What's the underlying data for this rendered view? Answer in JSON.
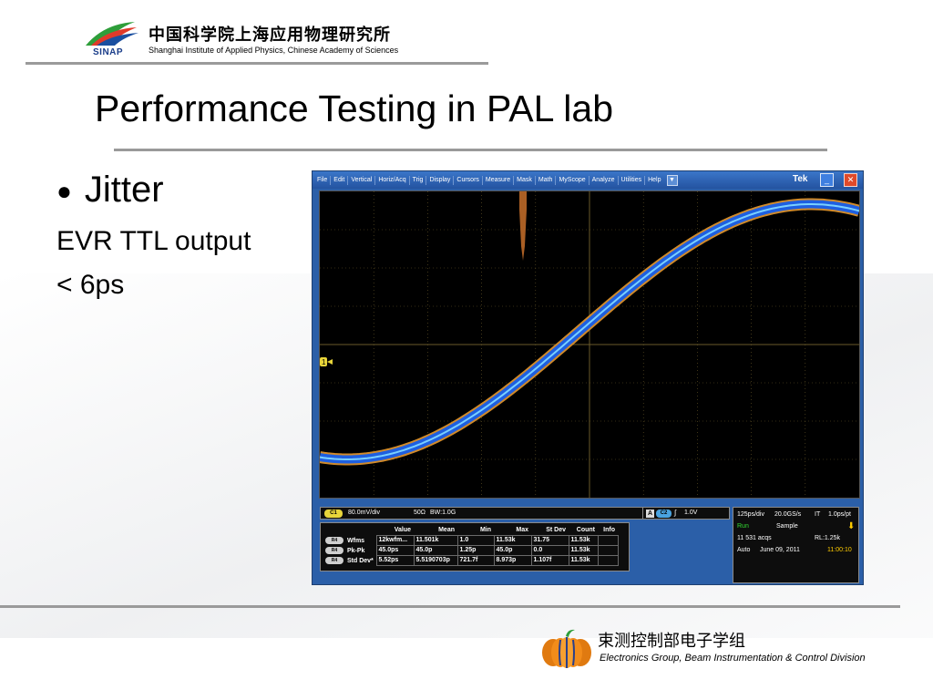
{
  "header": {
    "logo_label": "SINAP",
    "institute_cn": "中国科学院上海应用物理研究所",
    "institute_en": "Shanghai Institute of Applied Physics, Chinese Academy of Sciences"
  },
  "slide": {
    "title": "Performance Testing in PAL lab",
    "bullet": "Jitter",
    "line1": "EVR TTL output",
    "line2": "< 6ps"
  },
  "scope": {
    "menu": [
      "File",
      "Edit",
      "Vertical",
      "Horiz/Acq",
      "Trig",
      "Display",
      "Cursors",
      "Measure",
      "Mask",
      "Math",
      "MyScope",
      "Analyze",
      "Utilities",
      "Help"
    ],
    "menu_dropdown": "▼",
    "brand": "Tek",
    "minimize": "_",
    "close": "✕",
    "ground_marker": "1",
    "channel": {
      "badge": "C1",
      "scale": "80.0mV/div",
      "impedance": "50Ω",
      "bandwidth": "BW:1.0G"
    },
    "trigger": {
      "mode": "A",
      "source": "C2",
      "edge": "∫",
      "level": "1.0V"
    },
    "measurements": {
      "columns": [
        "",
        "Value",
        "Mean",
        "Min",
        "Max",
        "St Dev",
        "Count",
        "Info"
      ],
      "rows": [
        {
          "badge": "R4",
          "name": "Wfms",
          "value": "12kwfm...",
          "mean": "11.501k",
          "min": "1.0",
          "max": "11.53k",
          "stdev": "31.75",
          "count": "11.53k",
          "info": ""
        },
        {
          "badge": "R4",
          "name": "Pk-Pk",
          "value": "45.0ps",
          "mean": "45.0p",
          "min": "1.25p",
          "max": "45.0p",
          "stdev": "0.0",
          "count": "11.53k",
          "info": ""
        },
        {
          "badge": "R4",
          "name": "Std Dev*",
          "value": "5.52ps",
          "mean": "5.5190703p",
          "min": "721.7f",
          "max": "8.973p",
          "stdev": "1.107f",
          "count": "11.53k",
          "info": ""
        }
      ]
    },
    "acquisition": {
      "horizontal": "125ps/div",
      "sample_rate": "20.0GS/s",
      "mode": "IT",
      "resolution": "1.0ps/pt",
      "state": "Run",
      "acq_mode": "Sample",
      "acqs": "11 531 acqs",
      "record_length": "RL:1.25k",
      "trigger_mode": "Auto",
      "date": "June 09, 2011",
      "time": "11:00:10"
    },
    "colors": {
      "trace_core": "#1e5fe0",
      "trace_edge": "#d08a2a",
      "grid": "#6a5a2a",
      "time": "#ffcc00",
      "run": "#33dd33"
    }
  },
  "footer": {
    "group_cn": "束测控制部电子学组",
    "group_en": "Electronics Group, Beam Instrumentation & Control Division"
  }
}
